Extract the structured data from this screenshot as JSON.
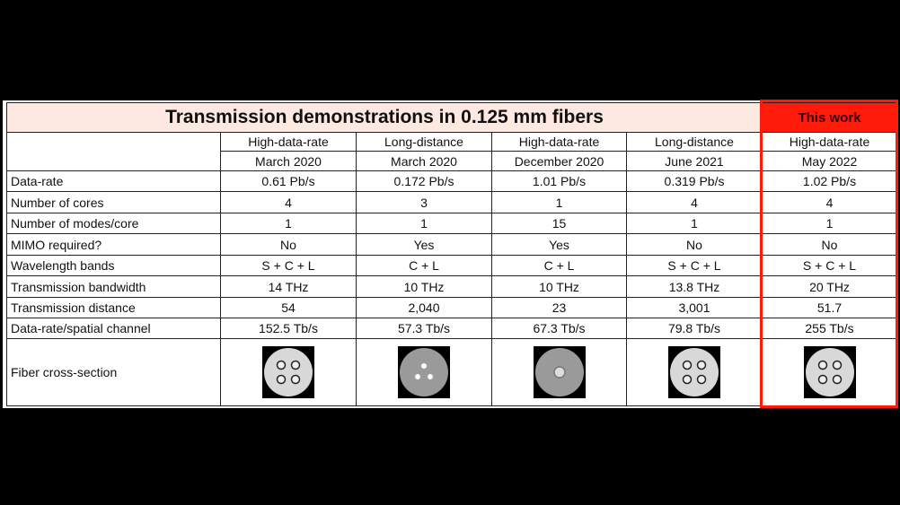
{
  "table": {
    "title": "Transmission demonstrations in 0.125 mm fibers",
    "highlight": "This work",
    "columns": [
      [
        "High-data-rate",
        "March 2020"
      ],
      [
        "Long-distance",
        "March 2020"
      ],
      [
        "High-data-rate",
        "December 2020"
      ],
      [
        "Long-distance",
        "June 2021"
      ],
      [
        "High-data-rate",
        "May 2022"
      ]
    ],
    "rows": [
      [
        "Data-rate",
        "0.61 Pb/s",
        "0.172 Pb/s",
        "1.01 Pb/s",
        "0.319 Pb/s",
        "1.02 Pb/s"
      ],
      [
        "Number of cores",
        "4",
        "3",
        "1",
        "4",
        "4"
      ],
      [
        "Number of modes/core",
        "1",
        "1",
        "15",
        "1",
        "1"
      ],
      [
        "MIMO required?",
        "No",
        "Yes",
        "Yes",
        "No",
        "No"
      ],
      [
        "Wavelength bands",
        "S + C + L",
        "C + L",
        "C + L",
        "S + C + L",
        "S + C + L"
      ],
      [
        "Transmission bandwidth",
        "14 THz",
        "10 THz",
        "10 THz",
        "13.8 THz",
        "20 THz"
      ],
      [
        "Transmission distance",
        "54",
        "2,040",
        "23",
        "3,001",
        "51.7"
      ],
      [
        "Data-rate/spatial channel",
        "152.5 Tb/s",
        "57.3 Tb/s",
        "67.3 Tb/s",
        "79.8 Tb/s",
        "255 Tb/s"
      ],
      [
        "Fiber cross-section"
      ]
    ]
  }
}
